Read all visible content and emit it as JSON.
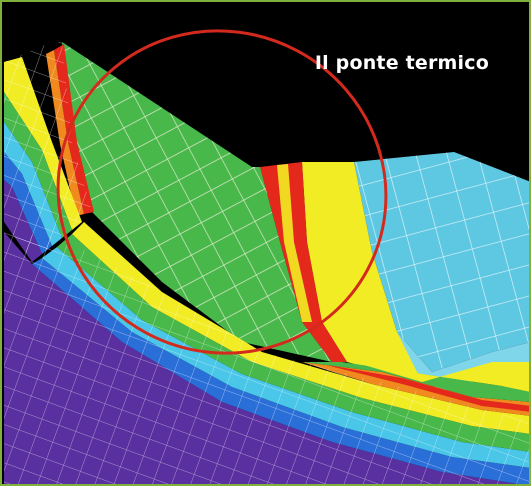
{
  "caption": "Il ponte termico",
  "colors": {
    "background": "#000000",
    "frame_border": "#7fb13c",
    "highlight_ellipse": "#d42a1e",
    "mesh_lines": "#f2f2f2",
    "band_purple": "#5a2fa0",
    "band_blue": "#2a6fd8",
    "band_cyan": "#49c6e8",
    "band_green": "#48b84a",
    "band_yellow": "#f2ec24",
    "band_orange": "#f08a1e",
    "band_red": "#e5281c",
    "light_blue_surface": "#5ec8e2"
  }
}
